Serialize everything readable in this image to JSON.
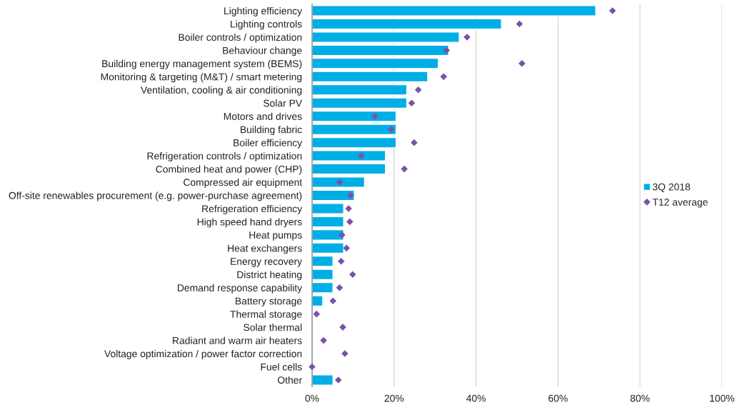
{
  "chart_data": {
    "type": "bar",
    "orientation": "horizontal",
    "categories": [
      "Lighting efficiency",
      "Lighting controls",
      "Boiler controls / optimization",
      "Behaviour change",
      "Building energy management system (BEMS)",
      "Monitoring & targeting (M&T) / smart metering",
      "Ventilation, cooling & air conditioning",
      "Solar PV",
      "Motors and drives",
      "Building fabric",
      "Boiler efficiency",
      "Refrigeration controls / optimization",
      "Combined heat and power (CHP)",
      "Compressed air equipment",
      "Off-site renewables procurement (e.g. power-purchase agreement)",
      "Refrigeration efficiency",
      "High speed hand dryers",
      "Heat pumps",
      "Heat exchangers",
      "Energy recovery",
      "District heating",
      "Demand response capability",
      "Battery storage",
      "Thermal storage",
      "Solar thermal",
      "Radiant and warm air heaters",
      "Voltage optimization / power factor correction",
      "Fuel cells",
      "Other"
    ],
    "series": [
      {
        "name": "3Q 2018",
        "color": "#00aee6",
        "values": [
          69.2,
          46.2,
          35.9,
          33.3,
          30.8,
          28.2,
          23.1,
          23.1,
          20.5,
          20.5,
          20.5,
          17.9,
          17.9,
          12.8,
          10.3,
          7.7,
          7.7,
          7.7,
          7.7,
          5.1,
          5.1,
          5.1,
          2.6,
          0,
          0,
          0,
          0,
          0,
          5.1
        ]
      },
      {
        "name": "T12 average",
        "type": "scatter",
        "marker": "diamond",
        "color": "#7a52a8",
        "values": [
          73.3,
          50.6,
          37.8,
          32.8,
          51.2,
          32.1,
          25.9,
          24.3,
          15.3,
          19.3,
          24.9,
          12.0,
          22.5,
          6.7,
          9.4,
          8.9,
          9.2,
          7.3,
          8.4,
          7.1,
          9.9,
          6.7,
          5.1,
          1.1,
          7.5,
          2.8,
          8.0,
          0,
          6.4
        ]
      }
    ],
    "xlim": [
      0,
      100
    ],
    "xticks": [
      {
        "value": 0,
        "label": "0%"
      },
      {
        "value": 20,
        "label": "20%"
      },
      {
        "value": 40,
        "label": "40%"
      },
      {
        "value": 60,
        "label": "60%"
      },
      {
        "value": 80,
        "label": "80%"
      },
      {
        "value": 100,
        "label": "100%"
      }
    ],
    "grid": "x",
    "legend": "right"
  }
}
